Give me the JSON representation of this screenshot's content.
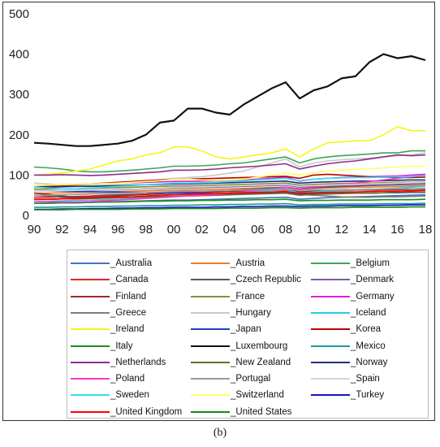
{
  "caption": "(b)",
  "chart_data": {
    "type": "line",
    "title": "",
    "xlabel": "",
    "ylabel": "",
    "ylim": [
      0,
      500
    ],
    "xlim": [
      1990,
      2018
    ],
    "yticks": [
      0,
      100,
      200,
      300,
      400,
      500
    ],
    "xticks": [
      1990,
      1992,
      1994,
      1996,
      1998,
      2000,
      2002,
      2004,
      2006,
      2008,
      2010,
      2012,
      2014,
      2016,
      2018
    ],
    "xtick_labels": [
      "90",
      "92",
      "94",
      "96",
      "98",
      "00",
      "02",
      "04",
      "06",
      "08",
      "10",
      "12",
      "14",
      "16",
      "18"
    ],
    "grid": false,
    "legend_position": "bottom",
    "x": [
      1990,
      1991,
      1992,
      1993,
      1994,
      1995,
      1996,
      1997,
      1998,
      1999,
      2000,
      2001,
      2002,
      2003,
      2004,
      2005,
      2006,
      2007,
      2008,
      2009,
      2010,
      2011,
      2012,
      2013,
      2014,
      2015,
      2016,
      2017,
      2018
    ],
    "series": [
      {
        "name": "_Australia",
        "color": "#4472c4",
        "values": [
          30,
          30,
          31,
          31,
          32,
          33,
          34,
          35,
          36,
          37,
          38,
          38,
          39,
          40,
          41,
          42,
          43,
          44,
          45,
          40,
          42,
          44,
          45,
          46,
          47,
          48,
          49,
          50,
          51
        ]
      },
      {
        "name": "_Austria",
        "color": "#ed7d31",
        "values": [
          55,
          55,
          56,
          57,
          57,
          58,
          59,
          60,
          61,
          62,
          63,
          63,
          64,
          65,
          66,
          67,
          68,
          69,
          70,
          66,
          67,
          68,
          69,
          70,
          70,
          71,
          72,
          73,
          74
        ]
      },
      {
        "name": "_Belgium",
        "color": "#3aa655",
        "values": [
          120,
          118,
          115,
          110,
          108,
          108,
          110,
          112,
          115,
          118,
          122,
          122,
          123,
          125,
          128,
          130,
          135,
          140,
          145,
          130,
          140,
          145,
          148,
          150,
          152,
          155,
          155,
          160,
          160
        ]
      },
      {
        "name": "_Canada",
        "color": "#e3262a",
        "values": [
          45,
          45,
          46,
          47,
          48,
          50,
          51,
          52,
          53,
          55,
          57,
          57,
          58,
          58,
          59,
          60,
          61,
          62,
          63,
          58,
          60,
          62,
          62,
          63,
          63,
          64,
          64,
          65,
          66
        ]
      },
      {
        "name": "_Czech Republic",
        "color": "#595959",
        "values": [
          50,
          48,
          45,
          45,
          46,
          48,
          50,
          51,
          52,
          54,
          56,
          57,
          58,
          60,
          62,
          64,
          66,
          68,
          70,
          65,
          68,
          70,
          72,
          73,
          74,
          75,
          76,
          77,
          78
        ]
      },
      {
        "name": "_Denmark",
        "color": "#7a5aa6",
        "values": [
          60,
          60,
          61,
          62,
          62,
          63,
          64,
          65,
          66,
          67,
          68,
          68,
          69,
          70,
          71,
          72,
          73,
          74,
          75,
          70,
          72,
          73,
          74,
          75,
          76,
          76,
          77,
          78,
          79
        ]
      },
      {
        "name": "_Finland",
        "color": "#9e2a2b",
        "values": [
          55,
          52,
          48,
          45,
          45,
          46,
          48,
          50,
          52,
          54,
          56,
          56,
          57,
          58,
          60,
          61,
          62,
          64,
          65,
          58,
          60,
          62,
          62,
          63,
          63,
          64,
          64,
          65,
          66
        ]
      },
      {
        "name": "_France",
        "color": "#8c8c3a",
        "values": [
          65,
          65,
          66,
          66,
          67,
          68,
          69,
          70,
          71,
          72,
          73,
          73,
          74,
          75,
          76,
          77,
          78,
          79,
          80,
          75,
          77,
          78,
          79,
          80,
          80,
          81,
          82,
          82,
          83
        ]
      },
      {
        "name": "_Germany",
        "color": "#e11be1",
        "values": [
          75,
          75,
          76,
          77,
          78,
          79,
          80,
          81,
          82,
          83,
          84,
          84,
          85,
          86,
          87,
          88,
          90,
          92,
          95,
          85,
          90,
          92,
          94,
          95,
          96,
          97,
          98,
          100,
          102
        ]
      },
      {
        "name": "_Greece",
        "color": "#7f7f7f",
        "values": [
          40,
          40,
          41,
          42,
          42,
          43,
          44,
          45,
          46,
          47,
          48,
          48,
          49,
          50,
          52,
          53,
          54,
          56,
          58,
          52,
          50,
          48,
          46,
          45,
          45,
          46,
          46,
          47,
          48
        ]
      },
      {
        "name": "_Hungary",
        "color": "#c9c9c9",
        "values": [
          80,
          78,
          75,
          74,
          75,
          77,
          79,
          82,
          85,
          88,
          92,
          94,
          96,
          100,
          105,
          110,
          120,
          130,
          140,
          120,
          130,
          135,
          138,
          140,
          142,
          145,
          148,
          150,
          155
        ]
      },
      {
        "name": "_Iceland",
        "color": "#22cfe3",
        "values": [
          35,
          35,
          36,
          37,
          38,
          39,
          40,
          42,
          44,
          46,
          48,
          49,
          50,
          52,
          55,
          58,
          60,
          62,
          65,
          55,
          58,
          60,
          62,
          63,
          64,
          66,
          68,
          70,
          72
        ]
      },
      {
        "name": "_Ireland",
        "color": "#f5f51b",
        "values": [
          100,
          102,
          105,
          110,
          115,
          125,
          135,
          140,
          150,
          155,
          170,
          170,
          160,
          145,
          140,
          145,
          150,
          155,
          165,
          145,
          165,
          180,
          182,
          185,
          185,
          200,
          220,
          210,
          210
        ]
      },
      {
        "name": "_Japan",
        "color": "#1f3fcf",
        "values": [
          60,
          60,
          60,
          59,
          59,
          58,
          58,
          57,
          57,
          56,
          56,
          55,
          55,
          54,
          54,
          55,
          55,
          56,
          56,
          52,
          54,
          54,
          55,
          55,
          55,
          56,
          56,
          57,
          57
        ]
      },
      {
        "name": "_Korea",
        "color": "#c00000",
        "values": [
          70,
          72,
          74,
          76,
          78,
          80,
          82,
          84,
          86,
          88,
          90,
          90,
          91,
          92,
          93,
          94,
          95,
          96,
          97,
          92,
          100,
          102,
          100,
          98,
          96,
          95,
          94,
          94,
          95
        ]
      },
      {
        "name": "_Italy",
        "color": "#1e8c1e",
        "values": [
          30,
          30,
          31,
          31,
          32,
          33,
          33,
          34,
          35,
          35,
          36,
          36,
          37,
          37,
          38,
          38,
          39,
          39,
          40,
          36,
          37,
          37,
          38,
          38,
          38,
          39,
          39,
          39,
          40
        ]
      },
      {
        "name": "_Luxembourg",
        "color": "#111111",
        "values": [
          180,
          178,
          175,
          172,
          172,
          175,
          178,
          185,
          200,
          230,
          235,
          265,
          265,
          255,
          250,
          275,
          295,
          315,
          330,
          290,
          310,
          320,
          340,
          345,
          380,
          400,
          390,
          395,
          385
        ]
      },
      {
        "name": "_Mexico",
        "color": "#1e9a9a",
        "values": [
          20,
          20,
          21,
          21,
          22,
          22,
          23,
          23,
          24,
          24,
          25,
          25,
          26,
          26,
          27,
          27,
          28,
          28,
          29,
          26,
          27,
          27,
          28,
          28,
          28,
          29,
          29,
          29,
          30
        ]
      },
      {
        "name": "_Netherlands",
        "color": "#8e2b8e",
        "values": [
          100,
          100,
          101,
          100,
          99,
          100,
          102,
          104,
          106,
          108,
          112,
          112,
          113,
          115,
          118,
          120,
          122,
          125,
          128,
          115,
          122,
          128,
          132,
          135,
          140,
          145,
          150,
          148,
          150
        ]
      },
      {
        "name": "_New Zealand",
        "color": "#6b6b1f",
        "values": [
          40,
          40,
          41,
          41,
          42,
          43,
          44,
          45,
          46,
          47,
          48,
          48,
          49,
          50,
          51,
          52,
          53,
          54,
          55,
          50,
          52,
          53,
          54,
          55,
          55,
          56,
          57,
          58,
          58
        ]
      },
      {
        "name": "_Norway",
        "color": "#1f2f7a",
        "values": [
          70,
          70,
          71,
          72,
          72,
          73,
          74,
          75,
          76,
          77,
          78,
          78,
          79,
          80,
          81,
          82,
          83,
          84,
          85,
          80,
          82,
          83,
          84,
          85,
          85,
          86,
          87,
          88,
          88
        ]
      },
      {
        "name": "_Poland",
        "color": "#ff33cc",
        "values": [
          35,
          34,
          33,
          33,
          34,
          36,
          38,
          40,
          42,
          44,
          46,
          48,
          50,
          52,
          55,
          58,
          62,
          66,
          70,
          66,
          70,
          74,
          78,
          80,
          84,
          88,
          92,
          96,
          100
        ]
      },
      {
        "name": "_Portugal",
        "color": "#999999",
        "values": [
          50,
          50,
          51,
          52,
          53,
          54,
          55,
          56,
          57,
          58,
          59,
          60,
          60,
          61,
          62,
          63,
          64,
          65,
          66,
          62,
          63,
          63,
          64,
          64,
          65,
          65,
          66,
          66,
          67
        ]
      },
      {
        "name": "_Spain",
        "color": "#d5d5d5",
        "values": [
          60,
          60,
          61,
          62,
          63,
          64,
          65,
          66,
          67,
          68,
          70,
          70,
          71,
          72,
          73,
          74,
          75,
          76,
          77,
          72,
          74,
          75,
          76,
          77,
          78,
          79,
          80,
          81,
          82
        ]
      },
      {
        "name": "_Sweden",
        "color": "#33e0f0",
        "values": [
          70,
          68,
          66,
          66,
          68,
          70,
          72,
          74,
          76,
          78,
          80,
          80,
          81,
          82,
          84,
          86,
          88,
          90,
          92,
          86,
          90,
          92,
          93,
          94,
          94,
          95,
          96,
          97,
          98
        ]
      },
      {
        "name": "_Switzerland",
        "color": "#ffff66",
        "values": [
          75,
          75,
          76,
          77,
          78,
          79,
          80,
          82,
          84,
          86,
          90,
          90,
          88,
          87,
          88,
          90,
          95,
          100,
          105,
          100,
          105,
          110,
          112,
          115,
          115,
          118,
          120,
          122,
          122
        ]
      },
      {
        "name": "_Turkey",
        "color": "#1414c8",
        "values": [
          15,
          15,
          16,
          16,
          17,
          17,
          18,
          18,
          19,
          19,
          20,
          20,
          20,
          21,
          21,
          22,
          22,
          23,
          23,
          22,
          23,
          23,
          24,
          24,
          24,
          25,
          25,
          26,
          26
        ]
      },
      {
        "name": "_United Kingdom",
        "color": "#ff0000",
        "values": [
          40,
          40,
          41,
          42,
          43,
          44,
          45,
          46,
          48,
          50,
          52,
          52,
          53,
          54,
          55,
          56,
          57,
          58,
          59,
          55,
          56,
          57,
          58,
          58,
          59,
          60,
          60,
          61,
          62
        ]
      },
      {
        "name": "_United States",
        "color": "#158a15",
        "values": [
          14,
          14,
          14,
          15,
          15,
          15,
          15,
          16,
          16,
          16,
          17,
          17,
          17,
          17,
          18,
          18,
          18,
          19,
          19,
          18,
          19,
          19,
          19,
          20,
          20,
          20,
          20,
          21,
          21
        ]
      }
    ]
  }
}
